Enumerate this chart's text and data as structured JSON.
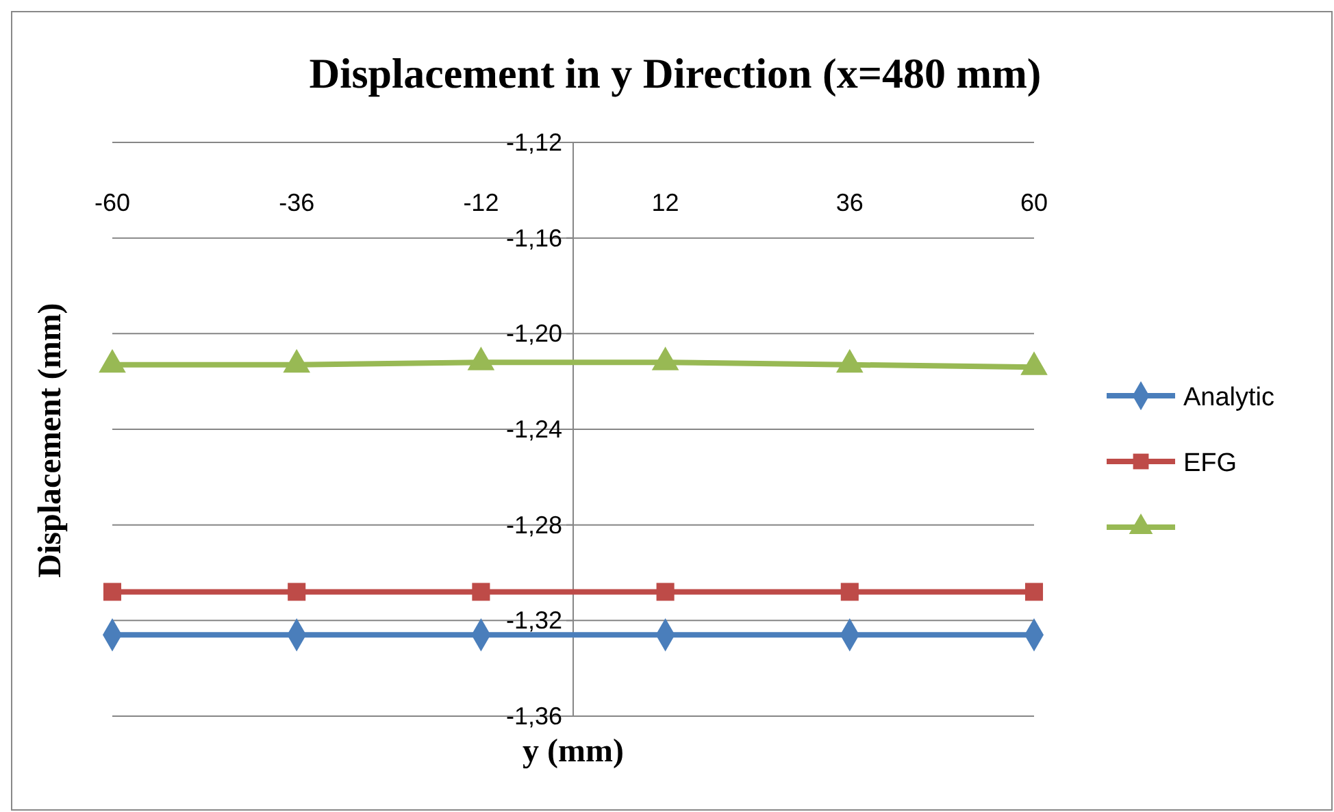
{
  "chart_data": {
    "type": "line",
    "title": "Displacement in y Direction (x=480 mm)",
    "xlabel": "y (mm)",
    "ylabel": "Displacement (mm)",
    "x": [
      -60,
      -36,
      -12,
      12,
      36,
      60
    ],
    "xlim": [
      -60,
      60
    ],
    "xticks": [
      -60,
      -36,
      -12,
      12,
      36,
      60
    ],
    "ylim": [
      -1.36,
      -1.12
    ],
    "yticks": [
      {
        "value": -1.36,
        "label": "-1,36"
      },
      {
        "value": -1.32,
        "label": "-1,32"
      },
      {
        "value": -1.28,
        "label": "-1,28"
      },
      {
        "value": -1.24,
        "label": "-1,24"
      },
      {
        "value": -1.2,
        "label": "-1,20"
      },
      {
        "value": -1.16,
        "label": "-1,16"
      },
      {
        "value": -1.12,
        "label": "-1,12"
      }
    ],
    "grid": "y",
    "legend": "right",
    "series": [
      {
        "name": "Analytic",
        "color": "#4a7ebb",
        "marker": "diamond",
        "values": [
          -1.326,
          -1.326,
          -1.326,
          -1.326,
          -1.326,
          -1.326
        ]
      },
      {
        "name": "EFG",
        "color": "#be4b48",
        "marker": "square",
        "values": [
          -1.308,
          -1.308,
          -1.308,
          -1.308,
          -1.308,
          -1.308
        ]
      },
      {
        "color": "#98b954",
        "marker": "triangle",
        "values": [
          -1.213,
          -1.213,
          -1.212,
          -1.212,
          -1.213,
          -1.214
        ]
      }
    ]
  }
}
